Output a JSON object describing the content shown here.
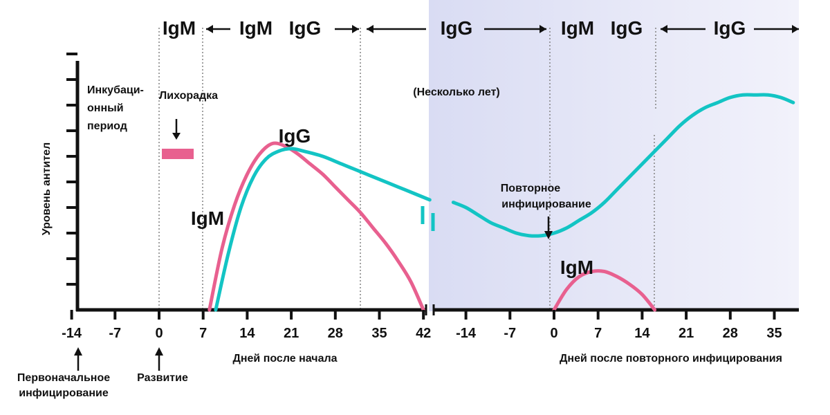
{
  "colors": {
    "igm": "#e8608f",
    "igg": "#13c4c4",
    "axis": "#111111",
    "panel_start": "#d9dcf3",
    "panel_end": "#f2f2fb"
  },
  "chart_data": {
    "type": "line",
    "ylabel": "Уровень антител",
    "x_ticks": [
      "-14",
      "-7",
      "0",
      "7",
      "14",
      "21",
      "28",
      "35",
      "42",
      "-14",
      "-7",
      "0",
      "7",
      "14",
      "21",
      "28",
      "35"
    ],
    "xlabel_primary": "Дней после начала",
    "xlabel_secondary": "Дней после повторного инфицирования",
    "break_label": "(Несколько лет)",
    "annotations": {
      "incubation": [
        "Инкубаци-",
        "онный",
        "период"
      ],
      "fever": "Лихорадка",
      "reinfection": [
        "Повторное",
        "инфицирование"
      ],
      "initial_infection": [
        "Первоначальное",
        "инфицирование"
      ],
      "onset": "Развитие"
    },
    "top_labels": [
      {
        "text": "IgM",
        "class": "igm"
      },
      {
        "text": "IgM",
        "class": "igm"
      },
      {
        "text": "IgG",
        "class": "igg"
      },
      {
        "text": "IgG",
        "class": "igg"
      },
      {
        "text": "IgM",
        "class": "igm"
      },
      {
        "text": "IgG",
        "class": "igg"
      },
      {
        "text": "IgG",
        "class": "igg"
      }
    ],
    "curve_labels": {
      "igm_primary": "IgM",
      "igg_primary": "IgG",
      "igm_secondary": "IgM"
    },
    "series": [
      {
        "name": "IgM",
        "segment": "primary",
        "x": [
          8,
          10,
          12,
          14,
          16,
          18,
          20,
          22,
          24,
          26,
          28,
          30,
          32,
          34,
          36,
          38,
          40,
          42
        ],
        "y": [
          0,
          2.4,
          4.1,
          5.3,
          6.1,
          6.5,
          6.4,
          6.1,
          5.7,
          5.3,
          4.8,
          4.3,
          3.8,
          3.2,
          2.6,
          1.9,
          1.1,
          0
        ]
      },
      {
        "name": "IgG",
        "segment": "primary",
        "x": [
          9,
          11,
          13,
          15,
          17,
          19,
          21,
          23,
          26,
          29,
          32,
          35,
          38,
          41,
          43
        ],
        "y": [
          0,
          2.2,
          4.0,
          5.2,
          5.9,
          6.2,
          6.3,
          6.2,
          6.0,
          5.7,
          5.4,
          5.1,
          4.8,
          4.5,
          4.3
        ]
      },
      {
        "name": "IgG",
        "segment": "secondary",
        "x": [
          -16,
          -14,
          -12,
          -10,
          -8,
          -6,
          -4,
          -2,
          0,
          2,
          4,
          6,
          8,
          10,
          12,
          14,
          16,
          18,
          20,
          22,
          24,
          26,
          28,
          30,
          32,
          34,
          36,
          38
        ],
        "y": [
          4.2,
          4.0,
          3.7,
          3.4,
          3.2,
          3.0,
          2.9,
          2.9,
          3.0,
          3.2,
          3.5,
          3.8,
          4.2,
          4.7,
          5.2,
          5.7,
          6.2,
          6.7,
          7.2,
          7.6,
          7.9,
          8.1,
          8.3,
          8.4,
          8.4,
          8.4,
          8.3,
          8.1
        ]
      },
      {
        "name": "IgM",
        "segment": "secondary",
        "x": [
          0,
          2,
          4,
          6,
          8,
          10,
          12,
          14,
          16
        ],
        "y": [
          0,
          0.8,
          1.3,
          1.5,
          1.5,
          1.3,
          1.0,
          0.6,
          0
        ]
      }
    ]
  }
}
